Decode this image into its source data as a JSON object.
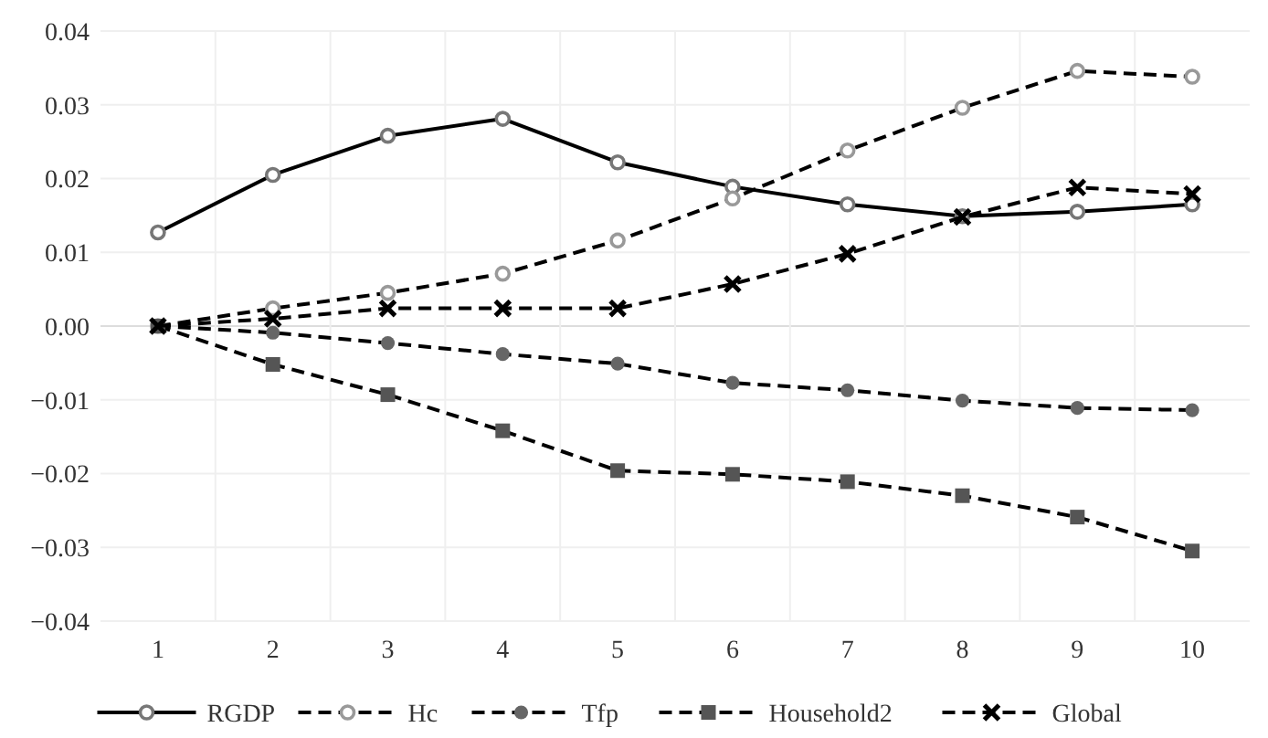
{
  "chart_data": {
    "type": "line",
    "categories": [
      "1",
      "2",
      "3",
      "4",
      "5",
      "6",
      "7",
      "8",
      "9",
      "10"
    ],
    "ylim": [
      -0.04,
      0.04
    ],
    "yticks": [
      {
        "value": -0.04,
        "label": "−0.04"
      },
      {
        "value": -0.03,
        "label": "−0.03"
      },
      {
        "value": -0.02,
        "label": "−0.02"
      },
      {
        "value": -0.01,
        "label": "−0.01"
      },
      {
        "value": 0,
        "label": "0.00"
      },
      {
        "value": 0.01,
        "label": "0.01"
      },
      {
        "value": 0.02,
        "label": "0.02"
      },
      {
        "value": 0.03,
        "label": "0.03"
      },
      {
        "value": 0.04,
        "label": "0.04"
      }
    ],
    "grid": true,
    "legend": "bottom",
    "series": [
      {
        "name": "RGDP",
        "color": "#777777",
        "line_style": "solid",
        "marker": "circle",
        "values": [
          0.0127,
          0.0205,
          0.0258,
          0.0281,
          0.0222,
          0.0189,
          0.0165,
          0.0149,
          0.0155,
          0.0165
        ]
      },
      {
        "name": "Hc",
        "color": "#999999",
        "line_style": "dashed",
        "marker": "circle",
        "values": [
          0,
          0.0024,
          0.0045,
          0.0071,
          0.0116,
          0.0173,
          0.0238,
          0.0296,
          0.0346,
          0.0338
        ]
      },
      {
        "name": "Tfp",
        "color": "#666666",
        "line_style": "dashed",
        "marker": "circle",
        "values": [
          0,
          -0.0009,
          -0.0023,
          -0.0038,
          -0.0051,
          -0.0077,
          -0.0087,
          -0.0101,
          -0.0111,
          -0.0114
        ]
      },
      {
        "name": "Household2",
        "color": "#555555",
        "line_style": "dashed",
        "marker": "square",
        "values": [
          0,
          -0.0052,
          -0.0093,
          -0.0142,
          -0.0196,
          -0.0201,
          -0.0211,
          -0.023,
          -0.0259,
          -0.0305
        ]
      },
      {
        "name": "Global",
        "color": "#000000",
        "line_style": "dashed",
        "marker": "cross",
        "values": [
          0,
          0.001,
          0.0024,
          0.0024,
          0.0024,
          0.0057,
          0.0098,
          0.0148,
          0.0188,
          0.0179
        ]
      }
    ]
  }
}
